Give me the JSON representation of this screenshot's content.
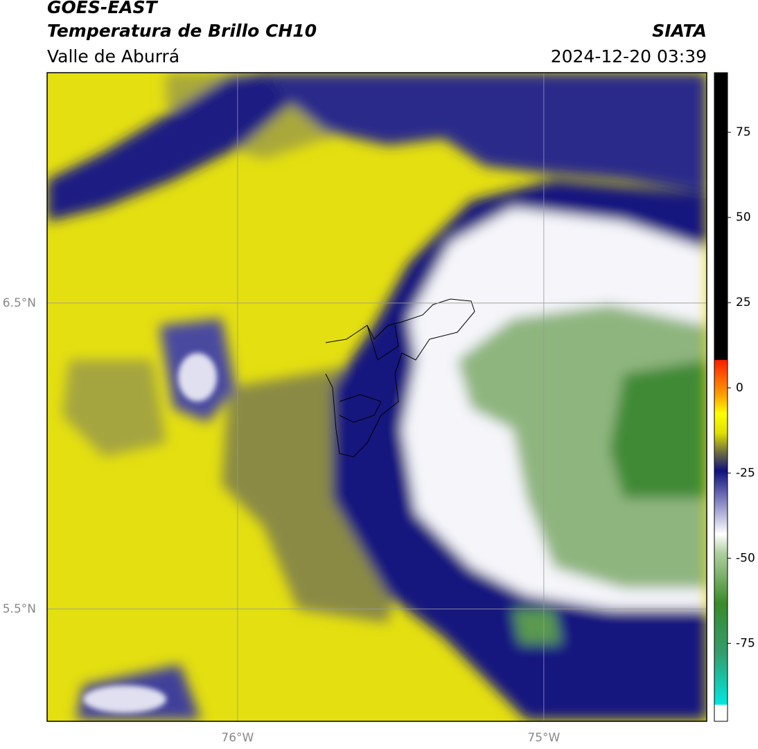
{
  "header": {
    "title": "GOES-EAST",
    "subtitle": "Temperatura de Brillo CH10",
    "region": "Valle de Aburrá",
    "source": "SIATA",
    "datetime": "2024-12-20 03:39"
  },
  "map": {
    "lat_range": [
      5.133,
      7.253
    ],
    "lon_range": [
      -76.622,
      -74.468
    ],
    "lat_ticks": [
      {
        "value": 6.5,
        "label": "6.5°N"
      },
      {
        "value": 5.5,
        "label": "5.5°N"
      }
    ],
    "lon_ticks": [
      {
        "value": -76,
        "label": "76°W"
      },
      {
        "value": -75,
        "label": "75°W"
      }
    ]
  },
  "colorbar": {
    "range": [
      -93,
      92.5
    ],
    "ticks": [
      75,
      50,
      25,
      0,
      -25,
      -50,
      -75
    ]
  }
}
